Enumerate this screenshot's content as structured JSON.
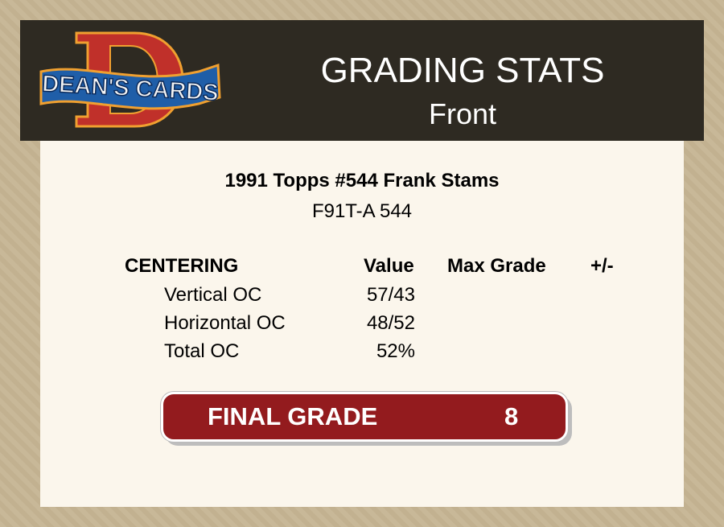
{
  "logo": {
    "text": "DEAN'S CARDS",
    "letter": "D"
  },
  "header": {
    "title": "GRADING STATS",
    "subtitle": "Front"
  },
  "card": {
    "name": "1991 Topps #544 Frank Stams",
    "code": "F91T-A 544"
  },
  "centering": {
    "heading": "CENTERING",
    "columns": [
      "Value",
      "Max Grade",
      "+/-"
    ],
    "rows": [
      {
        "label": "Vertical OC",
        "value": "57/43"
      },
      {
        "label": "Horizontal OC",
        "value": "48/52"
      },
      {
        "label": "Total OC",
        "value": "52%"
      }
    ]
  },
  "final": {
    "label": "FINAL GRADE",
    "value": "8"
  },
  "colors": {
    "header": "#2e2a22",
    "panel": "#fbf6ec",
    "grade": "#931b1e"
  }
}
